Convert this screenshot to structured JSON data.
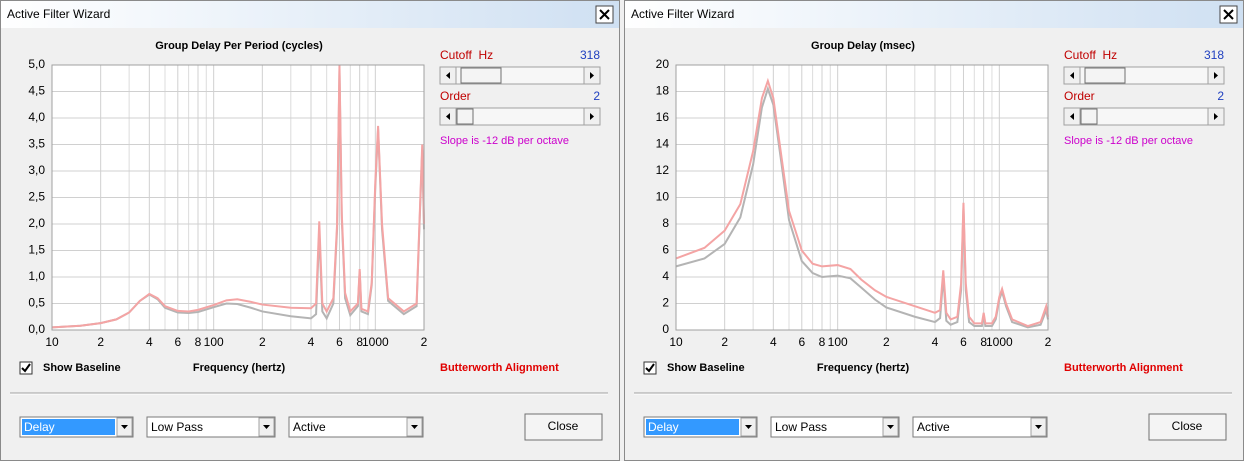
{
  "chart_data": [
    {
      "type": "line",
      "title": "Group Delay Per Period (cycles)",
      "x_label": "Frequency (hertz)",
      "xscale": "log",
      "grid": true,
      "xlim": [
        10,
        2000
      ],
      "ylim": [
        0,
        5
      ],
      "xticks": [
        10,
        {
          "value": 20,
          "label": "2"
        },
        {
          "value": 40,
          "label": "4"
        },
        {
          "value": 60,
          "label": "6"
        },
        {
          "value": 80,
          "label": "8"
        },
        100,
        {
          "value": 200,
          "label": "2"
        },
        {
          "value": 400,
          "label": "4"
        },
        {
          "value": 600,
          "label": "6"
        },
        {
          "value": 800,
          "label": "8"
        },
        1000,
        {
          "value": 2000,
          "label": "2"
        }
      ],
      "x_minor_ticks": [
        30,
        50,
        70,
        90,
        300,
        500,
        700,
        900
      ],
      "yticks": [
        {
          "value": 0,
          "label": "0,0"
        },
        {
          "value": 0.5,
          "label": "0,5"
        },
        {
          "value": 1,
          "label": "1,0"
        },
        {
          "value": 1.5,
          "label": "1,5"
        },
        {
          "value": 2,
          "label": "2,0"
        },
        {
          "value": 2.5,
          "label": "2,5"
        },
        {
          "value": 3,
          "label": "3,0"
        },
        {
          "value": 3.5,
          "label": "3,5"
        },
        {
          "value": 4,
          "label": "4,0"
        },
        {
          "value": 4.5,
          "label": "4,5"
        },
        {
          "value": 5,
          "label": "5,0"
        }
      ],
      "x": [
        10,
        15,
        20,
        25,
        30,
        35,
        40,
        45,
        50,
        60,
        70,
        80,
        100,
        120,
        140,
        170,
        200,
        300,
        400,
        430,
        450,
        470,
        500,
        550,
        580,
        600,
        620,
        650,
        700,
        780,
        800,
        820,
        900,
        950,
        1000,
        1040,
        1100,
        1200,
        1500,
        1800,
        1950,
        2000
      ],
      "series": [
        {
          "color": "#b4b4b4",
          "values": [
            0.05,
            0.08,
            0.13,
            0.2,
            0.33,
            0.55,
            0.67,
            0.58,
            0.42,
            0.33,
            0.32,
            0.34,
            0.43,
            0.5,
            0.49,
            0.42,
            0.35,
            0.26,
            0.22,
            0.3,
            1.85,
            0.35,
            0.22,
            0.5,
            1.9,
            4.9,
            2.1,
            0.6,
            0.28,
            0.45,
            1.1,
            0.35,
            0.3,
            0.85,
            2.7,
            3.8,
            1.9,
            0.55,
            0.3,
            0.45,
            3.4,
            1.9
          ]
        },
        {
          "color": "#f4a4a4",
          "values": [
            0.05,
            0.08,
            0.13,
            0.2,
            0.33,
            0.55,
            0.68,
            0.6,
            0.45,
            0.36,
            0.35,
            0.38,
            0.47,
            0.56,
            0.58,
            0.53,
            0.48,
            0.42,
            0.41,
            0.5,
            2.05,
            0.5,
            0.35,
            0.6,
            2.0,
            5.0,
            2.2,
            0.7,
            0.35,
            0.5,
            1.15,
            0.4,
            0.35,
            0.9,
            2.8,
            3.85,
            2.0,
            0.6,
            0.35,
            0.5,
            3.5,
            2.0
          ]
        }
      ]
    },
    {
      "type": "line",
      "title": "Group Delay (msec)",
      "x_label": "Frequency (hertz)",
      "xscale": "log",
      "grid": true,
      "xlim": [
        10,
        2000
      ],
      "ylim": [
        0,
        20
      ],
      "xticks": [
        10,
        {
          "value": 20,
          "label": "2"
        },
        {
          "value": 40,
          "label": "4"
        },
        {
          "value": 60,
          "label": "6"
        },
        {
          "value": 80,
          "label": "8"
        },
        100,
        {
          "value": 200,
          "label": "2"
        },
        {
          "value": 400,
          "label": "4"
        },
        {
          "value": 600,
          "label": "6"
        },
        {
          "value": 800,
          "label": "8"
        },
        1000,
        {
          "value": 2000,
          "label": "2"
        }
      ],
      "x_minor_ticks": [
        30,
        50,
        70,
        90,
        300,
        500,
        700,
        900
      ],
      "yticks": [
        0,
        2,
        4,
        6,
        8,
        10,
        12,
        14,
        16,
        18,
        20
      ],
      "x": [
        10,
        15,
        20,
        25,
        30,
        34,
        37,
        40,
        45,
        50,
        60,
        70,
        80,
        100,
        120,
        140,
        170,
        200,
        300,
        400,
        430,
        450,
        470,
        500,
        550,
        580,
        600,
        620,
        650,
        700,
        780,
        800,
        820,
        900,
        950,
        1000,
        1040,
        1100,
        1200,
        1500,
        1800,
        1950,
        2000
      ],
      "series": [
        {
          "color": "#b4b4b4",
          "values": [
            4.8,
            5.4,
            6.5,
            8.5,
            12.5,
            16.8,
            18.2,
            17.0,
            12.5,
            8.3,
            5.2,
            4.3,
            4.0,
            4.1,
            3.9,
            3.2,
            2.3,
            1.7,
            1.0,
            0.6,
            0.9,
            4.0,
            0.7,
            0.4,
            0.6,
            3.0,
            9.2,
            3.0,
            0.6,
            0.3,
            0.3,
            1.1,
            0.3,
            0.3,
            0.8,
            2.3,
            2.9,
            1.8,
            0.6,
            0.2,
            0.4,
            1.5,
            0.8
          ]
        },
        {
          "color": "#f4a4a4",
          "values": [
            5.4,
            6.2,
            7.5,
            9.5,
            13.5,
            17.5,
            18.8,
            17.5,
            13,
            9,
            6,
            5,
            4.8,
            4.9,
            4.6,
            3.8,
            3.0,
            2.5,
            1.8,
            1.3,
            1.5,
            4.5,
            1.3,
            0.8,
            1.0,
            3.5,
            9.6,
            3.5,
            1.0,
            0.5,
            0.5,
            1.3,
            0.5,
            0.5,
            1.0,
            2.5,
            3.1,
            2.0,
            0.8,
            0.3,
            0.6,
            1.8,
            1.0
          ]
        }
      ]
    }
  ],
  "windows": [
    {
      "title": "Active Filter Wizard",
      "cutoff_label": "Cutoff  Hz",
      "cutoff_value": 318,
      "order_label": "Order",
      "order_value": 2,
      "slope_text": "Slope is -12 dB per octave",
      "show_baseline_label": "Show Baseline",
      "show_baseline_checked": true,
      "alignment": "Butterworth Alignment",
      "dropdowns": [
        "Delay",
        "Low Pass",
        "Active"
      ],
      "close_button": "Close"
    },
    {
      "title": "Active Filter Wizard",
      "cutoff_label": "Cutoff  Hz",
      "cutoff_value": 318,
      "order_label": "Order",
      "order_value": 2,
      "slope_text": "Slope is -12 dB per octave",
      "show_baseline_label": "Show Baseline",
      "show_baseline_checked": true,
      "alignment": "Butterworth Alignment",
      "dropdowns": [
        "Delay",
        "Low Pass",
        "Active"
      ],
      "close_button": "Close"
    }
  ]
}
